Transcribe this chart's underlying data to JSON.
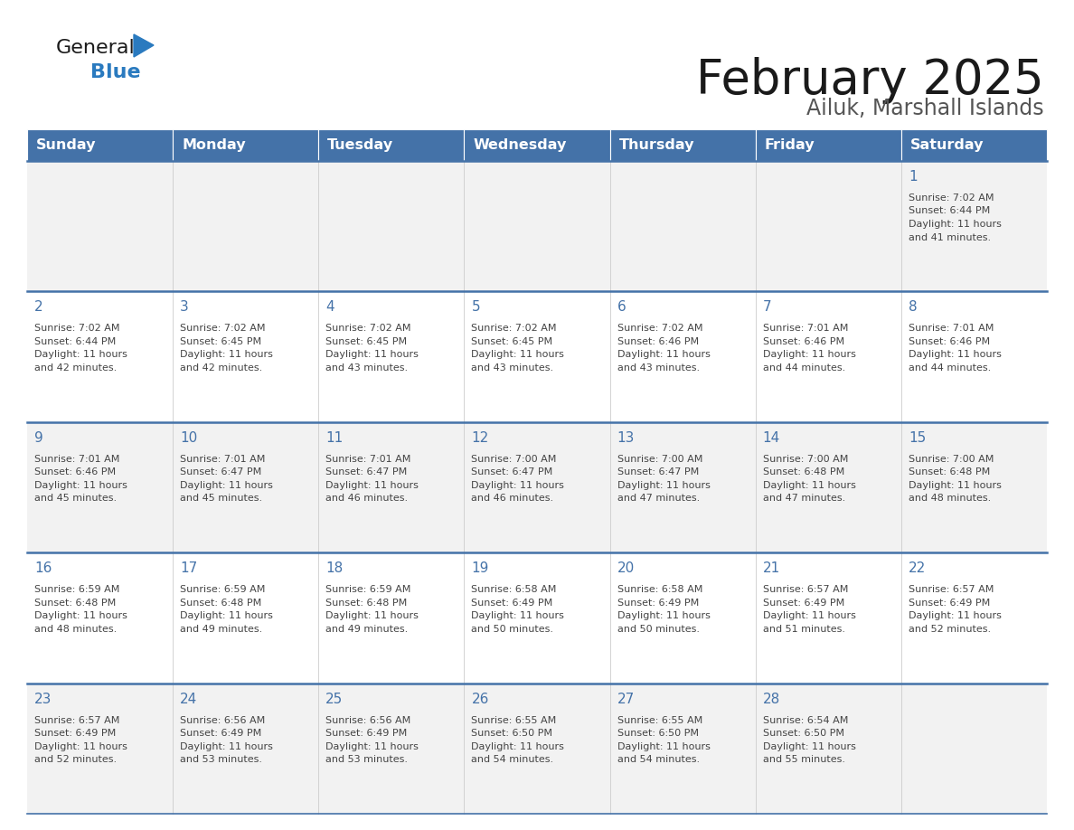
{
  "title": "February 2025",
  "subtitle": "Ailuk, Marshall Islands",
  "days_of_week": [
    "Sunday",
    "Monday",
    "Tuesday",
    "Wednesday",
    "Thursday",
    "Friday",
    "Saturday"
  ],
  "header_bg_color": "#4472A8",
  "header_text_color": "#FFFFFF",
  "row_bg_even": "#F2F2F2",
  "row_bg_odd": "#FFFFFF",
  "day_num_color": "#4472A8",
  "text_color": "#444444",
  "border_color": "#4472A8",
  "calendar_data": [
    {
      "day": 1,
      "col": 6,
      "row": 0,
      "sunrise": "7:02 AM",
      "sunset": "6:44 PM",
      "daylight": "11 hours and 41 minutes."
    },
    {
      "day": 2,
      "col": 0,
      "row": 1,
      "sunrise": "7:02 AM",
      "sunset": "6:44 PM",
      "daylight": "11 hours and 42 minutes."
    },
    {
      "day": 3,
      "col": 1,
      "row": 1,
      "sunrise": "7:02 AM",
      "sunset": "6:45 PM",
      "daylight": "11 hours and 42 minutes."
    },
    {
      "day": 4,
      "col": 2,
      "row": 1,
      "sunrise": "7:02 AM",
      "sunset": "6:45 PM",
      "daylight": "11 hours and 43 minutes."
    },
    {
      "day": 5,
      "col": 3,
      "row": 1,
      "sunrise": "7:02 AM",
      "sunset": "6:45 PM",
      "daylight": "11 hours and 43 minutes."
    },
    {
      "day": 6,
      "col": 4,
      "row": 1,
      "sunrise": "7:02 AM",
      "sunset": "6:46 PM",
      "daylight": "11 hours and 43 minutes."
    },
    {
      "day": 7,
      "col": 5,
      "row": 1,
      "sunrise": "7:01 AM",
      "sunset": "6:46 PM",
      "daylight": "11 hours and 44 minutes."
    },
    {
      "day": 8,
      "col": 6,
      "row": 1,
      "sunrise": "7:01 AM",
      "sunset": "6:46 PM",
      "daylight": "11 hours and 44 minutes."
    },
    {
      "day": 9,
      "col": 0,
      "row": 2,
      "sunrise": "7:01 AM",
      "sunset": "6:46 PM",
      "daylight": "11 hours and 45 minutes."
    },
    {
      "day": 10,
      "col": 1,
      "row": 2,
      "sunrise": "7:01 AM",
      "sunset": "6:47 PM",
      "daylight": "11 hours and 45 minutes."
    },
    {
      "day": 11,
      "col": 2,
      "row": 2,
      "sunrise": "7:01 AM",
      "sunset": "6:47 PM",
      "daylight": "11 hours and 46 minutes."
    },
    {
      "day": 12,
      "col": 3,
      "row": 2,
      "sunrise": "7:00 AM",
      "sunset": "6:47 PM",
      "daylight": "11 hours and 46 minutes."
    },
    {
      "day": 13,
      "col": 4,
      "row": 2,
      "sunrise": "7:00 AM",
      "sunset": "6:47 PM",
      "daylight": "11 hours and 47 minutes."
    },
    {
      "day": 14,
      "col": 5,
      "row": 2,
      "sunrise": "7:00 AM",
      "sunset": "6:48 PM",
      "daylight": "11 hours and 47 minutes."
    },
    {
      "day": 15,
      "col": 6,
      "row": 2,
      "sunrise": "7:00 AM",
      "sunset": "6:48 PM",
      "daylight": "11 hours and 48 minutes."
    },
    {
      "day": 16,
      "col": 0,
      "row": 3,
      "sunrise": "6:59 AM",
      "sunset": "6:48 PM",
      "daylight": "11 hours and 48 minutes."
    },
    {
      "day": 17,
      "col": 1,
      "row": 3,
      "sunrise": "6:59 AM",
      "sunset": "6:48 PM",
      "daylight": "11 hours and 49 minutes."
    },
    {
      "day": 18,
      "col": 2,
      "row": 3,
      "sunrise": "6:59 AM",
      "sunset": "6:48 PM",
      "daylight": "11 hours and 49 minutes."
    },
    {
      "day": 19,
      "col": 3,
      "row": 3,
      "sunrise": "6:58 AM",
      "sunset": "6:49 PM",
      "daylight": "11 hours and 50 minutes."
    },
    {
      "day": 20,
      "col": 4,
      "row": 3,
      "sunrise": "6:58 AM",
      "sunset": "6:49 PM",
      "daylight": "11 hours and 50 minutes."
    },
    {
      "day": 21,
      "col": 5,
      "row": 3,
      "sunrise": "6:57 AM",
      "sunset": "6:49 PM",
      "daylight": "11 hours and 51 minutes."
    },
    {
      "day": 22,
      "col": 6,
      "row": 3,
      "sunrise": "6:57 AM",
      "sunset": "6:49 PM",
      "daylight": "11 hours and 52 minutes."
    },
    {
      "day": 23,
      "col": 0,
      "row": 4,
      "sunrise": "6:57 AM",
      "sunset": "6:49 PM",
      "daylight": "11 hours and 52 minutes."
    },
    {
      "day": 24,
      "col": 1,
      "row": 4,
      "sunrise": "6:56 AM",
      "sunset": "6:49 PM",
      "daylight": "11 hours and 53 minutes."
    },
    {
      "day": 25,
      "col": 2,
      "row": 4,
      "sunrise": "6:56 AM",
      "sunset": "6:49 PM",
      "daylight": "11 hours and 53 minutes."
    },
    {
      "day": 26,
      "col": 3,
      "row": 4,
      "sunrise": "6:55 AM",
      "sunset": "6:50 PM",
      "daylight": "11 hours and 54 minutes."
    },
    {
      "day": 27,
      "col": 4,
      "row": 4,
      "sunrise": "6:55 AM",
      "sunset": "6:50 PM",
      "daylight": "11 hours and 54 minutes."
    },
    {
      "day": 28,
      "col": 5,
      "row": 4,
      "sunrise": "6:54 AM",
      "sunset": "6:50 PM",
      "daylight": "11 hours and 55 minutes."
    }
  ]
}
